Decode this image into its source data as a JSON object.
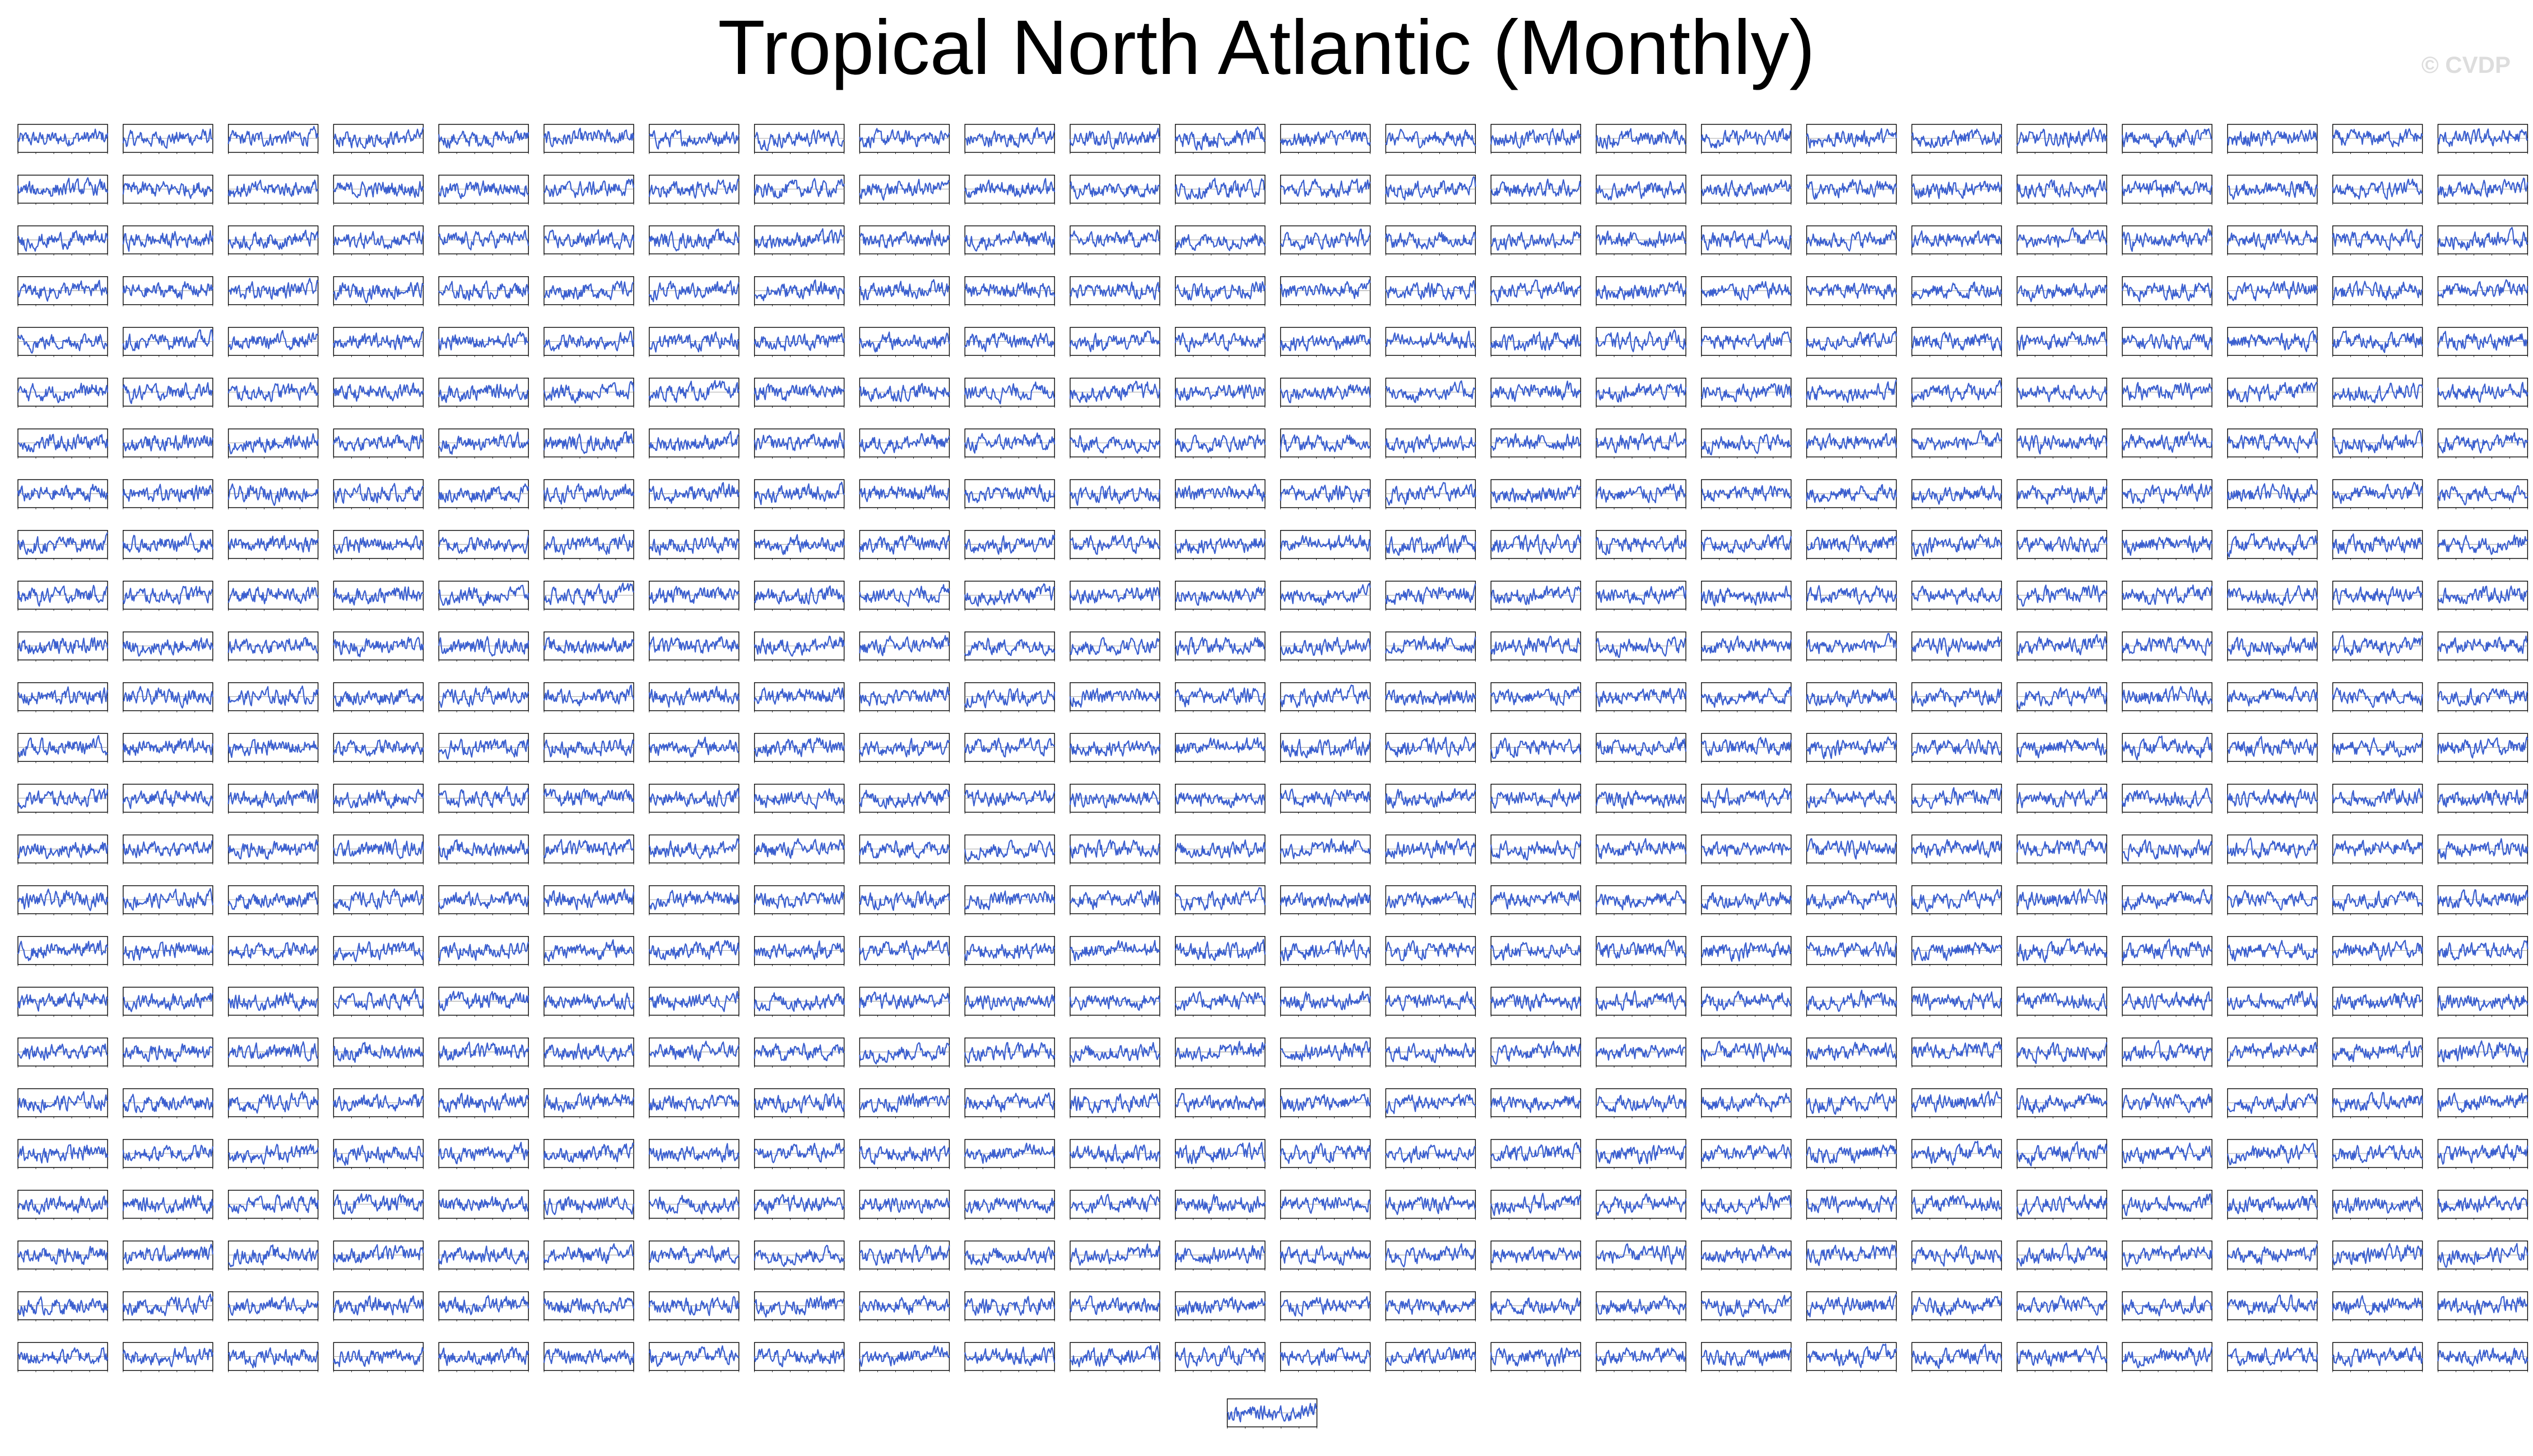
{
  "page": {
    "title": "Tropical North Atlantic (Monthly)",
    "watermark": "© CVDP"
  },
  "colors": {
    "series": "#3b5fcf",
    "frame": "#000000",
    "watermark": "#dddddd"
  },
  "chart_data": {
    "type": "line",
    "description_type": "small-multiples",
    "panel_grid": {
      "columns": 24,
      "rows": 25,
      "extra_panels": 1
    },
    "series_style": "monthly time series fluctuating around zero",
    "grid": false
  }
}
